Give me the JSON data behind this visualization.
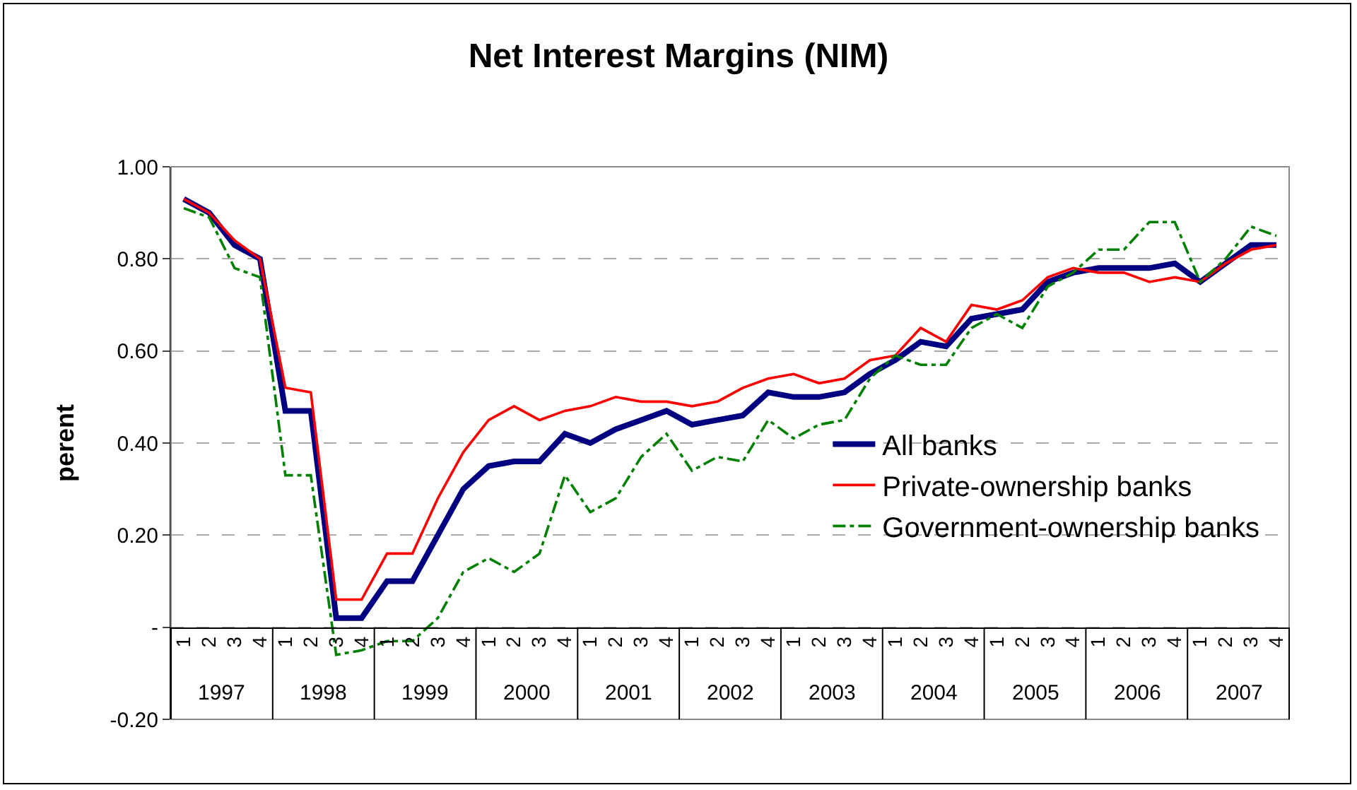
{
  "chart_data": {
    "type": "line",
    "title": "Net Interest Margins (NIM)",
    "ylabel": "perent",
    "categories": [
      "1",
      "2",
      "3",
      "4",
      "1",
      "2",
      "3",
      "4",
      "1",
      "2",
      "3",
      "4",
      "1",
      "2",
      "3",
      "4",
      "1",
      "2",
      "3",
      "4",
      "1",
      "2",
      "3",
      "4",
      "1",
      "2",
      "3",
      "4",
      "1",
      "2",
      "3",
      "4",
      "1",
      "2",
      "3",
      "4",
      "1",
      "2",
      "3",
      "4",
      "1",
      "2",
      "3",
      "4"
    ],
    "annotations": [
      "1997",
      "1998",
      "1999",
      "2000",
      "2001",
      "2002",
      "2003",
      "2004",
      "2005",
      "2006",
      "2007"
    ],
    "series": [
      {
        "name": "All banks",
        "color": "#000080",
        "line_style": "solid",
        "values": [
          0.93,
          0.9,
          0.83,
          0.8,
          0.47,
          0.47,
          0.02,
          0.02,
          0.1,
          0.1,
          0.2,
          0.3,
          0.35,
          0.36,
          0.36,
          0.42,
          0.4,
          0.43,
          0.45,
          0.47,
          0.44,
          0.45,
          0.46,
          0.51,
          0.5,
          0.5,
          0.51,
          0.55,
          0.58,
          0.62,
          0.61,
          0.67,
          0.68,
          0.69,
          0.75,
          0.77,
          0.78,
          0.78,
          0.78,
          0.79,
          0.75,
          0.79,
          0.83,
          0.83
        ]
      },
      {
        "name": "Private-ownership banks",
        "color": "#ff0000",
        "line_style": "solid",
        "values": [
          0.93,
          0.9,
          0.84,
          0.8,
          0.52,
          0.51,
          0.06,
          0.06,
          0.16,
          0.16,
          0.28,
          0.38,
          0.45,
          0.48,
          0.45,
          0.47,
          0.48,
          0.5,
          0.49,
          0.49,
          0.48,
          0.49,
          0.52,
          0.54,
          0.55,
          0.53,
          0.54,
          0.58,
          0.59,
          0.65,
          0.62,
          0.7,
          0.69,
          0.71,
          0.76,
          0.78,
          0.77,
          0.77,
          0.75,
          0.76,
          0.75,
          0.79,
          0.82,
          0.83
        ]
      },
      {
        "name": "Government-ownership banks",
        "color": "#008000",
        "line_style": "dashed",
        "values": [
          0.91,
          0.89,
          0.78,
          0.76,
          0.33,
          0.33,
          -0.06,
          -0.05,
          -0.03,
          -0.03,
          0.02,
          0.12,
          0.15,
          0.12,
          0.16,
          0.33,
          0.25,
          0.28,
          0.37,
          0.42,
          0.34,
          0.37,
          0.36,
          0.45,
          0.41,
          0.44,
          0.45,
          0.54,
          0.59,
          0.57,
          0.57,
          0.65,
          0.68,
          0.65,
          0.74,
          0.77,
          0.82,
          0.82,
          0.88,
          0.88,
          0.75,
          0.8,
          0.87,
          0.85
        ]
      }
    ],
    "ylim": [
      -0.2,
      1.0
    ],
    "yticks": [
      {
        "value": -0.2,
        "label": "-0.20"
      },
      {
        "value": 0,
        "label": "-"
      },
      {
        "value": 0.2,
        "label": "0.20"
      },
      {
        "value": 0.4,
        "label": "0.40"
      },
      {
        "value": 0.6,
        "label": "0.60"
      },
      {
        "value": 0.8,
        "label": "0.80"
      },
      {
        "value": 1.0,
        "label": "1.00"
      }
    ],
    "grid": "y",
    "legend": "bottom right",
    "marker": "none"
  }
}
